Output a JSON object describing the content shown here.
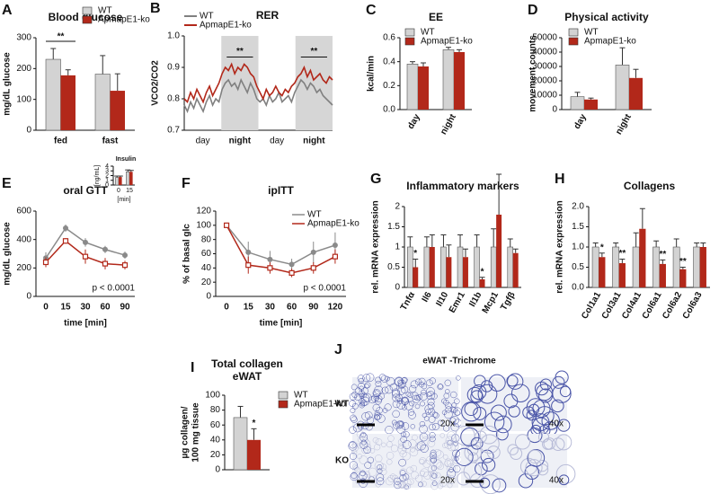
{
  "chart_data": [
    {
      "type": "bar",
      "panel": "A",
      "title": "Blood glucose",
      "ylabel": "mg/dL glucose",
      "categories": [
        "fed",
        "fast"
      ],
      "series": [
        {
          "name": "WT",
          "color": "#d3d3d3",
          "values": [
            230,
            182
          ],
          "errors": [
            35,
            60
          ]
        },
        {
          "name": "ApmapE1-ko",
          "color": "#b2281a",
          "values": [
            178,
            128
          ],
          "errors": [
            18,
            55
          ]
        }
      ],
      "ylim": [
        0,
        300
      ],
      "yticks": [
        0,
        100,
        200,
        300
      ],
      "significance": [
        "**",
        null
      ],
      "legend": true
    },
    {
      "type": "line",
      "panel": "B",
      "title": "RER",
      "ylabel": "VCO2/CO2",
      "x_labels": [
        "day",
        "night",
        "day",
        "night"
      ],
      "series": [
        {
          "name": "WT",
          "color": "#808080",
          "values": [
            0.78,
            0.76,
            0.79,
            0.77,
            0.8,
            0.78,
            0.76,
            0.79,
            0.81,
            0.78,
            0.8,
            0.79,
            0.83,
            0.85,
            0.86,
            0.84,
            0.85,
            0.83,
            0.86,
            0.84,
            0.82,
            0.85,
            0.83,
            0.8,
            0.79,
            0.8,
            0.78,
            0.81,
            0.79,
            0.8,
            0.82,
            0.79,
            0.8,
            0.81,
            0.79,
            0.82,
            0.84,
            0.86,
            0.85,
            0.83,
            0.85,
            0.84,
            0.82,
            0.83,
            0.81,
            0.8,
            0.79,
            0.78
          ]
        },
        {
          "name": "ApmapE1-ko",
          "color": "#b2281a",
          "values": [
            0.8,
            0.79,
            0.82,
            0.8,
            0.83,
            0.81,
            0.79,
            0.82,
            0.84,
            0.81,
            0.83,
            0.85,
            0.88,
            0.9,
            0.89,
            0.91,
            0.88,
            0.9,
            0.89,
            0.91,
            0.9,
            0.88,
            0.87,
            0.84,
            0.82,
            0.8,
            0.83,
            0.81,
            0.82,
            0.84,
            0.82,
            0.81,
            0.83,
            0.82,
            0.84,
            0.85,
            0.87,
            0.88,
            0.9,
            0.87,
            0.89,
            0.86,
            0.87,
            0.88,
            0.86,
            0.85,
            0.87,
            0.86
          ]
        }
      ],
      "ylim": [
        0.7,
        1.0
      ],
      "yticks": [
        0.7,
        0.8,
        0.9,
        {
          "value": 1,
          "label": "1.0"
        }
      ],
      "significance": [
        null,
        "**",
        null,
        "**"
      ],
      "legend": true
    },
    {
      "type": "bar",
      "panel": "C",
      "title": "EE",
      "ylabel": "kcal/min",
      "categories": [
        "day",
        "night"
      ],
      "series": [
        {
          "name": "WT",
          "color": "#d3d3d3",
          "values": [
            0.38,
            0.5
          ],
          "errors": [
            0.02,
            0.02
          ]
        },
        {
          "name": "ApmapE1-ko",
          "color": "#b2281a",
          "values": [
            0.36,
            0.48
          ],
          "errors": [
            0.03,
            0.02
          ]
        }
      ],
      "ylim": [
        0,
        0.6
      ],
      "yticks": [
        {
          "value": 0,
          "label": "0.0"
        },
        0.2,
        0.4,
        0.6
      ],
      "legend": true
    },
    {
      "type": "bar",
      "panel": "D",
      "title": "Physical activity",
      "ylabel": "movement counts",
      "categories": [
        "day",
        "night"
      ],
      "series": [
        {
          "name": "WT",
          "color": "#d3d3d3",
          "values": [
            9000,
            31000
          ],
          "errors": [
            3000,
            12000
          ]
        },
        {
          "name": "ApmapE1-ko",
          "color": "#b2281a",
          "values": [
            7000,
            22000
          ],
          "errors": [
            1000,
            6000
          ]
        }
      ],
      "ylim": [
        0,
        50000
      ],
      "yticks": [
        0,
        10000,
        20000,
        30000,
        40000,
        50000
      ],
      "legend": true
    },
    {
      "type": "line",
      "panel": "E",
      "title": "oral GTT",
      "ylabel": "mg/dL glucose",
      "xlabel": "time [min]",
      "categories": [
        "0",
        "15",
        "30",
        "60",
        "90"
      ],
      "series": [
        {
          "name": "WT",
          "color": "#8a8a8a",
          "values": [
            270,
            480,
            380,
            330,
            290
          ],
          "errors": [
            40,
            25,
            30,
            25,
            25
          ]
        },
        {
          "name": "ApmapE1-ko",
          "color": "#b2281a",
          "values": [
            240,
            390,
            280,
            230,
            220
          ],
          "errors": [
            35,
            20,
            50,
            40,
            30
          ]
        }
      ],
      "ylim": [
        0,
        600
      ],
      "yticks": [
        0,
        200,
        400,
        600
      ],
      "note": "p < 0.0001"
    },
    {
      "type": "bar",
      "title": "Insulin",
      "ylabel": "[ng/mL]",
      "xlabel": "[min]",
      "categories": [
        "0",
        "15"
      ],
      "series": [
        {
          "name": "WT",
          "color": "#d3d3d3",
          "values": [
            1.6,
            2.8
          ],
          "errors": [
            0.3,
            0.4
          ]
        },
        {
          "name": "ApmapE1-ko",
          "color": "#b2281a",
          "values": [
            1.7,
            2.8
          ],
          "errors": [
            0.2,
            0.3
          ]
        }
      ],
      "ylim": [
        0,
        4
      ],
      "yticks": [
        0,
        1,
        2,
        3,
        4
      ]
    },
    {
      "type": "line",
      "panel": "F",
      "title": "ipITT",
      "ylabel": "% of basal glc",
      "xlabel": "time [min]",
      "categories": [
        "0",
        "15",
        "30",
        "60",
        "90",
        "120"
      ],
      "series": [
        {
          "name": "WT",
          "color": "#8a8a8a",
          "values": [
            100,
            62,
            52,
            45,
            62,
            72
          ],
          "errors": [
            0,
            15,
            12,
            8,
            15,
            18
          ]
        },
        {
          "name": "ApmapE1-ko",
          "color": "#b2281a",
          "values": [
            100,
            44,
            40,
            33,
            40,
            56
          ],
          "errors": [
            0,
            12,
            8,
            6,
            8,
            10
          ]
        }
      ],
      "ylim": [
        0,
        120
      ],
      "yticks": [
        0,
        20,
        40,
        60,
        80,
        100,
        120
      ],
      "note": "p < 0.0001",
      "legend": true
    },
    {
      "type": "bar",
      "panel": "G",
      "title": "Inflammatory markers",
      "ylabel": "rel. mRNA expression",
      "categories": [
        "Tnfα",
        "Il6",
        "Il10",
        "Emr1",
        "Il1b",
        "Mcp1",
        "Tgfβ"
      ],
      "series": [
        {
          "name": "WT",
          "color": "#d3d3d3",
          "values": [
            1,
            1,
            1,
            1,
            1,
            1,
            1
          ],
          "errors": [
            0.25,
            0.25,
            0.3,
            0.3,
            0.3,
            0.45,
            0.2
          ]
        },
        {
          "name": "ApmapE1-ko",
          "color": "#b2281a",
          "values": [
            0.5,
            1,
            0.75,
            0.75,
            0.2,
            1.8,
            0.85
          ],
          "errors": [
            0.2,
            0.3,
            0.3,
            0.2,
            0.05,
            1.0,
            0.1
          ]
        }
      ],
      "ylim": [
        0,
        2
      ],
      "yticks": [
        0,
        0.5,
        1,
        1.5,
        2
      ],
      "significance": [
        "*",
        null,
        null,
        null,
        "*",
        null,
        null
      ]
    },
    {
      "type": "bar",
      "panel": "H",
      "title": "Collagens",
      "ylabel": "rel. mRNA expression",
      "categories": [
        "Col1a1",
        "Col3a1",
        "Col4a1",
        "Col6a1",
        "Col6a2",
        "Col6a3"
      ],
      "series": [
        {
          "name": "WT",
          "color": "#d3d3d3",
          "values": [
            1,
            1,
            1,
            1,
            1,
            1
          ],
          "errors": [
            0.1,
            0.1,
            0.35,
            0.15,
            0.2,
            0.1
          ]
        },
        {
          "name": "ApmapE1-ko",
          "color": "#b2281a",
          "values": [
            0.75,
            0.6,
            1.45,
            0.58,
            0.45,
            1.0
          ],
          "errors": [
            0.1,
            0.1,
            0.5,
            0.1,
            0.05,
            0.1
          ]
        }
      ],
      "ylim": [
        0,
        2
      ],
      "yticks": [
        {
          "value": 0,
          "label": "0.0"
        },
        0.5,
        {
          "value": 1,
          "label": "1.0"
        },
        1.5,
        {
          "value": 2,
          "label": "2.0"
        }
      ],
      "significance": [
        "*",
        "**",
        null,
        "**",
        "**",
        null
      ]
    },
    {
      "type": "bar",
      "panel": "I",
      "title": [
        "Total collagen",
        "eWAT"
      ],
      "ylabel": [
        "µg collagen/",
        "100 mg tissue"
      ],
      "categories": [
        null
      ],
      "series": [
        {
          "name": "WT",
          "color": "#d3d3d3",
          "values": [
            70
          ],
          "errors": [
            15
          ]
        },
        {
          "name": "ApmapE1-ko",
          "color": "#b2281a",
          "values": [
            40
          ],
          "errors": [
            15
          ]
        }
      ],
      "ylim": [
        0,
        100
      ],
      "yticks": [
        0,
        20,
        40,
        60,
        80,
        100
      ],
      "significance": [
        "*"
      ],
      "legend": true
    }
  ],
  "image_panel": {
    "panel": "J",
    "title": "eWAT -Trichrome",
    "rows": [
      "WT",
      "KO"
    ],
    "magnifications": [
      [
        "20x",
        "40x"
      ],
      [
        "20x",
        "40x"
      ]
    ]
  }
}
